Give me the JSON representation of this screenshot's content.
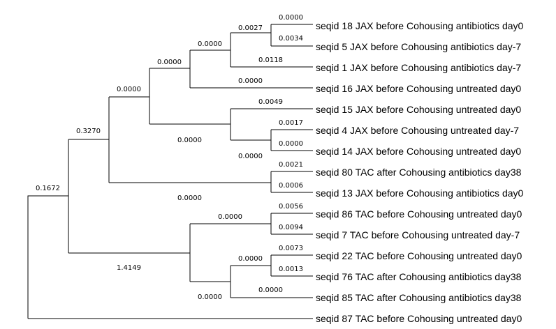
{
  "tree": {
    "leaves": [
      "seqid 18 JAX before Cohousing antibiotics day0",
      "seqid 5 JAX before Cohousing antibiotics day-7",
      "seqid 1 JAX before Cohousing antibiotics day-7",
      "seqid 16 JAX before Cohousing untreated day0",
      "seqid 15 JAX before Cohousing untreated day0",
      "seqid 4 JAX before Cohousing untreated day-7",
      "seqid 14 JAX before Cohousing untreated day0",
      "seqid 80 TAC after Cohousing antibiotics day38",
      "seqid 13 JAX before Cohousing antibiotics day0",
      "seqid 86 TAC before Cohousing untreated day0",
      "seqid 7 TAC before Cohousing untreated day-7",
      "seqid 22 TAC before Cohousing untreated day0",
      "seqid 76 TAC after Cohousing antibiotics day38",
      "seqid 85 TAC after Cohousing antibiotics day38",
      "seqid 87 TAC before Cohousing untreated day0"
    ],
    "branch_lengths": [
      "0.0000",
      "0.0034",
      "0.0027",
      "0.0118",
      "0.0000",
      "0.0000",
      "0.0000",
      "0.0049",
      "0.0017",
      "0.0000",
      "0.0000",
      "0.0000",
      "0.0021",
      "0.0006",
      "0.0000",
      "0.0000",
      "0.3270",
      "0.1672",
      "0.0056",
      "0.0094",
      "0.0000",
      "0.0073",
      "0.0013",
      "0.0000",
      "0.0000",
      "0.0000",
      "1.4149"
    ]
  }
}
